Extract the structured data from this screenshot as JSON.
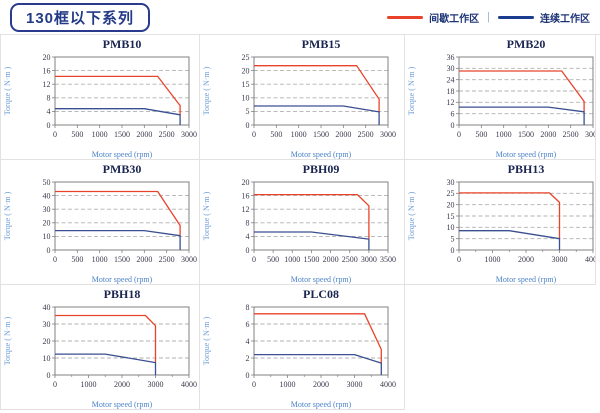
{
  "header": {
    "title": "130框以下系列",
    "legend": [
      {
        "label": "间歇工作区",
        "color": "#e8432a"
      },
      {
        "label": "连续工作区",
        "color": "#1b3d8f"
      }
    ],
    "legend_separator": "|"
  },
  "colors": {
    "intermittent": "#e8432a",
    "continuous": "#3a4f91",
    "grid_border": "#e2e2e2",
    "plot_border": "#808080",
    "gridline": "#b0b0b0",
    "title_text": "#1a2550",
    "navy_text": "#1e3478"
  },
  "chart_data": [
    {
      "type": "line",
      "title": "PMB10",
      "xlabel": "Motor speed (rpm)",
      "ylabel": "Torque ( N·m )",
      "xlim": [
        0,
        3000
      ],
      "xtick_step": 500,
      "xminor_step": null,
      "ylim": [
        0,
        20
      ],
      "ytick_step": 4,
      "grid": "horizontal-dashed",
      "series": [
        {
          "name": "间歇工作区",
          "color": "#e8432a",
          "points": [
            [
              0,
              14.3
            ],
            [
              2300,
              14.3
            ],
            [
              2800,
              5.7
            ],
            [
              2800,
              3
            ]
          ]
        },
        {
          "name": "连续工作区",
          "color": "#3a4f91",
          "points": [
            [
              0,
              4.8
            ],
            [
              2000,
              4.8
            ],
            [
              2800,
              3
            ],
            [
              2800,
              0
            ]
          ]
        }
      ]
    },
    {
      "type": "line",
      "title": "PMB15",
      "xlabel": "Motor speed (rpm)",
      "ylabel": "Torque ( N·m )",
      "xlim": [
        0,
        3000
      ],
      "xtick_step": 500,
      "xminor_step": null,
      "ylim": [
        0,
        25
      ],
      "ytick_step": 5,
      "grid": "horizontal-dashed",
      "series": [
        {
          "name": "间歇工作区",
          "color": "#e8432a",
          "points": [
            [
              0,
              21.8
            ],
            [
              2300,
              21.8
            ],
            [
              2800,
              9.5
            ],
            [
              2800,
              4.8
            ]
          ]
        },
        {
          "name": "连续工作区",
          "color": "#3a4f91",
          "points": [
            [
              0,
              7
            ],
            [
              2000,
              7
            ],
            [
              2800,
              4.8
            ],
            [
              2800,
              0
            ]
          ]
        }
      ]
    },
    {
      "type": "line",
      "title": "PMB20",
      "xlabel": "Motor speed (rpm)",
      "ylabel": "Torque ( N·m )",
      "xlim": [
        0,
        3000
      ],
      "xtick_step": 500,
      "xminor_step": null,
      "ylim": [
        0,
        36
      ],
      "ytick_step": 6,
      "grid": "horizontal-dashed",
      "series": [
        {
          "name": "间歇工作区",
          "color": "#e8432a",
          "points": [
            [
              0,
              28.6
            ],
            [
              2300,
              28.6
            ],
            [
              2800,
              12.5
            ],
            [
              2800,
              7
            ]
          ]
        },
        {
          "name": "连续工作区",
          "color": "#3a4f91",
          "points": [
            [
              0,
              9.5
            ],
            [
              2000,
              9.5
            ],
            [
              2800,
              7
            ],
            [
              2800,
              0
            ]
          ]
        }
      ]
    },
    {
      "type": "line",
      "title": "PMB30",
      "xlabel": "Motor speed (rpm)",
      "ylabel": "Torque ( N·m )",
      "xlim": [
        0,
        3000
      ],
      "xtick_step": 500,
      "xminor_step": null,
      "ylim": [
        0,
        50
      ],
      "ytick_step": 10,
      "grid": "horizontal-dashed",
      "series": [
        {
          "name": "间歇工作区",
          "color": "#e8432a",
          "points": [
            [
              0,
              43
            ],
            [
              2300,
              43
            ],
            [
              2800,
              18
            ],
            [
              2800,
              10.5
            ]
          ]
        },
        {
          "name": "连续工作区",
          "color": "#3a4f91",
          "points": [
            [
              0,
              14.3
            ],
            [
              2000,
              14.3
            ],
            [
              2800,
              10.5
            ],
            [
              2800,
              0
            ]
          ]
        }
      ]
    },
    {
      "type": "line",
      "title": "PBH09",
      "xlabel": "Motor speed (rpm)",
      "ylabel": "Torque ( N·m )",
      "xlim": [
        0,
        3500
      ],
      "xtick_step": 500,
      "xminor_step": null,
      "ylim": [
        0,
        20
      ],
      "ytick_step": 4,
      "grid": "horizontal-dashed",
      "series": [
        {
          "name": "间歇工作区",
          "color": "#e8432a",
          "points": [
            [
              0,
              16.3
            ],
            [
              2700,
              16.3
            ],
            [
              3000,
              13
            ],
            [
              3000,
              3.2
            ]
          ]
        },
        {
          "name": "连续工作区",
          "color": "#3a4f91",
          "points": [
            [
              0,
              5.3
            ],
            [
              1500,
              5.3
            ],
            [
              3000,
              3.2
            ],
            [
              3000,
              0
            ]
          ]
        }
      ]
    },
    {
      "type": "line",
      "title": "PBH13",
      "xlabel": "Motor speed (rpm)",
      "ylabel": "Torque ( N·m )",
      "xlim": [
        0,
        4000
      ],
      "xtick_step": 1000,
      "xminor_step": 500,
      "ylim": [
        0,
        30
      ],
      "ytick_step": 5,
      "grid": "horizontal-dashed",
      "series": [
        {
          "name": "间歇工作区",
          "color": "#e8432a",
          "points": [
            [
              0,
              25.2
            ],
            [
              2700,
              25.2
            ],
            [
              3000,
              21
            ],
            [
              3000,
              5
            ]
          ]
        },
        {
          "name": "连续工作区",
          "color": "#3a4f91",
          "points": [
            [
              0,
              8.5
            ],
            [
              1500,
              8.5
            ],
            [
              3000,
              5
            ],
            [
              3000,
              0
            ]
          ]
        }
      ]
    },
    {
      "type": "line",
      "title": "PBH18",
      "xlabel": "Motor speed (rpm)",
      "ylabel": "Torque ( N·m )",
      "xlim": [
        0,
        4000
      ],
      "xtick_step": 1000,
      "xminor_step": 500,
      "ylim": [
        0,
        40
      ],
      "ytick_step": 10,
      "grid": "horizontal-dashed",
      "series": [
        {
          "name": "间歇工作区",
          "color": "#e8432a",
          "points": [
            [
              0,
              35
            ],
            [
              2700,
              35
            ],
            [
              3000,
              29
            ],
            [
              3000,
              7.3
            ]
          ]
        },
        {
          "name": "连续工作区",
          "color": "#3a4f91",
          "points": [
            [
              0,
              12.3
            ],
            [
              1500,
              12.3
            ],
            [
              3000,
              7.3
            ],
            [
              3000,
              0
            ]
          ]
        }
      ]
    },
    {
      "type": "line",
      "title": "PLC08",
      "xlabel": "Motor speed (rpm)",
      "ylabel": "Torque ( N·m )",
      "xlim": [
        0,
        4000
      ],
      "xtick_step": 1000,
      "xminor_step": 500,
      "ylim": [
        0,
        8
      ],
      "ytick_step": 2,
      "grid": "horizontal-dashed",
      "series": [
        {
          "name": "间歇工作区",
          "color": "#e8432a",
          "points": [
            [
              0,
              7.2
            ],
            [
              3300,
              7.2
            ],
            [
              3800,
              3
            ],
            [
              3800,
              1.4
            ]
          ]
        },
        {
          "name": "连续工作区",
          "color": "#3a4f91",
          "points": [
            [
              0,
              2.4
            ],
            [
              3000,
              2.4
            ],
            [
              3800,
              1.4
            ],
            [
              3800,
              0
            ]
          ]
        }
      ]
    }
  ]
}
